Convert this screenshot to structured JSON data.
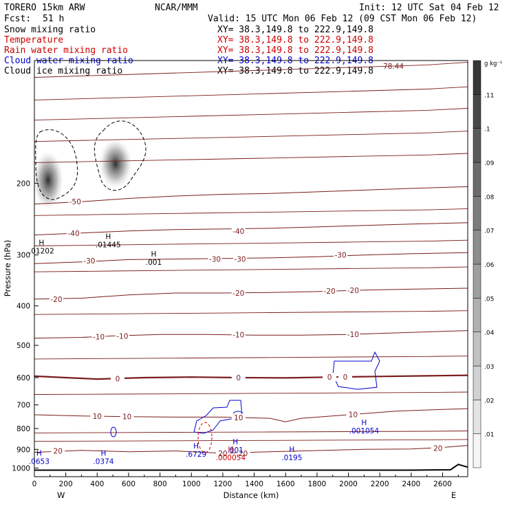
{
  "header": {
    "model": "TORERO  15km ARW",
    "org": "NCAR/MMM",
    "init": "Init: 12 UTC Sat 04 Feb 12",
    "fcst_label": "Fcst:",
    "fcst_value": "51 h",
    "valid": "Valid: 15 UTC Mon 06 Feb 12 (09 CST Mon 06 Feb 12)"
  },
  "legend": [
    {
      "name": "Snow mixing ratio",
      "color": "#000000",
      "xy": "XY=  38.3,149.8 to 222.9,149.8"
    },
    {
      "name": "Temperature",
      "color": "#cc0000",
      "xy": "XY=  38.3,149.8 to 222.9,149.8"
    },
    {
      "name": "Rain water mixing ratio",
      "color": "#cc0000",
      "xy": "XY=  38.3,149.8 to 222.9,149.8"
    },
    {
      "name": "Cloud water mixing ratio",
      "color": "#0000cc",
      "xy": "XY=  38.3,149.8 to 222.9,149.8"
    },
    {
      "name": "Cloud ice mixing ratio",
      "color": "#000000",
      "xy": "XY=  38.3,149.8 to 222.9,149.8"
    }
  ],
  "colorbar": {
    "unit": "g kg⁻¹",
    "labels": [
      ".01",
      ".02",
      ".03",
      ".04",
      ".05",
      ".06",
      ".07",
      ".08",
      ".09",
      ".1",
      ".11"
    ]
  },
  "chart_data": {
    "type": "cross-section",
    "xlabel": "Distance (km)",
    "ylabel": "Pressure (hPa)",
    "xlim": [
      0,
      2760
    ],
    "ylim": [
      1050,
      100
    ],
    "y_scale": "log",
    "x_ticks": [
      "0",
      "200",
      "400",
      "600",
      "800",
      "1000",
      "1200",
      "1400",
      "1600",
      "1800",
      "2000",
      "2200",
      "2400",
      "2600"
    ],
    "x_tick_values": [
      0,
      200,
      400,
      600,
      800,
      1000,
      1200,
      1400,
      1600,
      1800,
      2000,
      2200,
      2400,
      2600
    ],
    "y_ticks": [
      "200",
      "300",
      "400",
      "500",
      "600",
      "700",
      "800",
      "900",
      "1000"
    ],
    "y_tick_values": [
      200,
      300,
      400,
      500,
      600,
      700,
      800,
      900,
      1000
    ],
    "endpoint_left": "W",
    "endpoint_right": "E",
    "temperature_isotherms": [
      {
        "value": 0,
        "bold": true,
        "points": [
          [
            0,
            595
          ],
          [
            200,
            600
          ],
          [
            400,
            605
          ],
          [
            700,
            600
          ],
          [
            1000,
            598
          ],
          [
            1300,
            600
          ],
          [
            1600,
            601
          ],
          [
            1900,
            598
          ],
          [
            2200,
            596
          ],
          [
            2500,
            594
          ],
          [
            2760,
            592
          ]
        ]
      },
      {
        "value": 10,
        "bold": false,
        "points": [
          [
            0,
            740
          ],
          [
            300,
            745
          ],
          [
            600,
            748
          ],
          [
            900,
            750
          ],
          [
            1200,
            750
          ],
          [
            1500,
            755
          ],
          [
            1600,
            770
          ],
          [
            1700,
            755
          ],
          [
            2000,
            740
          ],
          [
            2300,
            725
          ],
          [
            2600,
            718
          ],
          [
            2760,
            715
          ]
        ]
      },
      {
        "value": 20,
        "bold": false,
        "points": [
          [
            0,
            915
          ],
          [
            300,
            905
          ],
          [
            600,
            912
          ],
          [
            900,
            908
          ],
          [
            1200,
            920
          ],
          [
            1500,
            912
          ],
          [
            1800,
            906
          ],
          [
            2100,
            900
          ],
          [
            2400,
            898
          ],
          [
            2600,
            890
          ],
          [
            2760,
            880
          ]
        ]
      },
      {
        "value": -10,
        "bold": false,
        "points": [
          [
            0,
            480
          ],
          [
            300,
            478
          ],
          [
            500,
            474
          ],
          [
            800,
            470
          ],
          [
            1100,
            470
          ],
          [
            1400,
            472
          ],
          [
            1700,
            472
          ],
          [
            2000,
            470
          ],
          [
            2300,
            466
          ],
          [
            2600,
            462
          ],
          [
            2760,
            460
          ]
        ]
      },
      {
        "value": -20,
        "bold": false,
        "points": [
          [
            0,
            385
          ],
          [
            300,
            383
          ],
          [
            600,
            376
          ],
          [
            900,
            372
          ],
          [
            1200,
            372
          ],
          [
            1500,
            371
          ],
          [
            1800,
            369
          ],
          [
            2100,
            366
          ],
          [
            2400,
            364
          ],
          [
            2760,
            362
          ]
        ]
      },
      {
        "value": -30,
        "bold": false,
        "points": [
          [
            0,
            315
          ],
          [
            300,
            312
          ],
          [
            600,
            308
          ],
          [
            900,
            307
          ],
          [
            1200,
            306
          ],
          [
            1500,
            305
          ],
          [
            1800,
            303
          ],
          [
            2100,
            300
          ],
          [
            2400,
            298
          ],
          [
            2760,
            296
          ]
        ]
      },
      {
        "value": -40,
        "bold": false,
        "points": [
          [
            0,
            268
          ],
          [
            300,
            265
          ],
          [
            600,
            262
          ],
          [
            900,
            260
          ],
          [
            1200,
            259
          ],
          [
            1500,
            258
          ],
          [
            1800,
            256
          ],
          [
            2100,
            254
          ],
          [
            2400,
            252
          ],
          [
            2760,
            250
          ]
        ]
      },
      {
        "value": -50,
        "bold": false,
        "points": [
          [
            0,
            225
          ],
          [
            300,
            222
          ],
          [
            600,
            218
          ],
          [
            900,
            215
          ],
          [
            1200,
            213
          ],
          [
            1500,
            212
          ],
          [
            1800,
            210
          ],
          [
            2100,
            208
          ],
          [
            2400,
            206
          ],
          [
            2760,
            204
          ]
        ]
      }
    ],
    "temperature_labels": [
      {
        "x": 260,
        "p": 222,
        "text": "-50"
      },
      {
        "x": 250,
        "p": 265,
        "text": "-40"
      },
      {
        "x": 1300,
        "p": 262,
        "text": "-40"
      },
      {
        "x": 350,
        "p": 310,
        "text": "-30"
      },
      {
        "x": 1150,
        "p": 307,
        "text": "-30"
      },
      {
        "x": 1310,
        "p": 307,
        "text": "-30"
      },
      {
        "x": 1950,
        "p": 300,
        "text": "-30"
      },
      {
        "x": 140,
        "p": 385,
        "text": "-20"
      },
      {
        "x": 1300,
        "p": 372,
        "text": "-20"
      },
      {
        "x": 1880,
        "p": 368,
        "text": "-20"
      },
      {
        "x": 2030,
        "p": 366,
        "text": "-20"
      },
      {
        "x": 410,
        "p": 476,
        "text": "-10"
      },
      {
        "x": 560,
        "p": 474,
        "text": "-10"
      },
      {
        "x": 1300,
        "p": 471,
        "text": "-10"
      },
      {
        "x": 2030,
        "p": 470,
        "text": "-10"
      },
      {
        "x": 530,
        "p": 603,
        "text": "0"
      },
      {
        "x": 1300,
        "p": 600,
        "text": "0"
      },
      {
        "x": 1880,
        "p": 598,
        "text": "0"
      },
      {
        "x": 1980,
        "p": 598,
        "text": "0"
      },
      {
        "x": 400,
        "p": 746,
        "text": "10"
      },
      {
        "x": 590,
        "p": 748,
        "text": "10"
      },
      {
        "x": 1300,
        "p": 752,
        "text": "10"
      },
      {
        "x": 2030,
        "p": 738,
        "text": "10"
      },
      {
        "x": 150,
        "p": 908,
        "text": "20"
      },
      {
        "x": 1200,
        "p": 920,
        "text": "20"
      },
      {
        "x": 1330,
        "p": 920,
        "text": "20"
      },
      {
        "x": 2570,
        "p": 893,
        "text": "20"
      }
    ],
    "cloud_ice_maxima": [
      {
        "x": 45,
        "p": 295,
        "text": ".01202"
      },
      {
        "x": 470,
        "p": 285,
        "text": ".01445"
      },
      {
        "x": 760,
        "p": 315,
        "text": ".001"
      }
    ],
    "cloud_water_maxima": [
      {
        "x": 30,
        "p": 970,
        "text": ".0653"
      },
      {
        "x": 440,
        "p": 970,
        "text": ".0374"
      },
      {
        "x": 1030,
        "p": 930,
        "text": ".6729"
      },
      {
        "x": 1280,
        "p": 910,
        "text": ".001"
      },
      {
        "x": 1640,
        "p": 950,
        "text": ".0195"
      },
      {
        "x": 2100,
        "p": 815,
        "text": ".001054"
      }
    ],
    "rain_maxima": [
      {
        "x": 1250,
        "p": 950,
        "text": ".000054"
      }
    ],
    "max_label": "78.44"
  }
}
